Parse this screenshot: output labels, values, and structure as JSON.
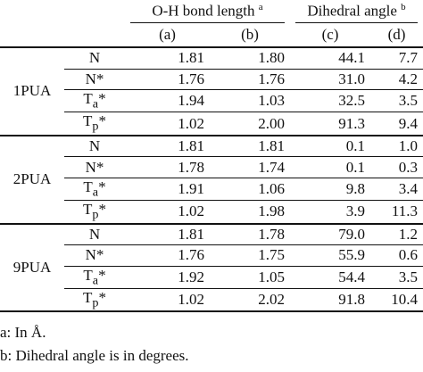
{
  "table": {
    "header": {
      "group1": {
        "text": "O-H bond length",
        "note": "a"
      },
      "group2": {
        "text": "Dihedral angle",
        "note": "b"
      },
      "columns": [
        "(a)",
        "(b)",
        "(c)",
        "(d)"
      ]
    },
    "groups": [
      {
        "name": "1PUA",
        "rows": [
          {
            "label": "N",
            "cells": [
              "1.81",
              "1.80",
              "44.1",
              "7.7"
            ]
          },
          {
            "label": "N*",
            "cells": [
              "1.76",
              "1.76",
              "31.0",
              "4.2"
            ]
          },
          {
            "label": {
              "text": "T",
              "sub": "a",
              "suffix": "*"
            },
            "cells": [
              "1.94",
              "1.03",
              "32.5",
              "3.5"
            ]
          },
          {
            "label": {
              "text": "T",
              "sub": "p",
              "suffix": "*"
            },
            "cells": [
              "1.02",
              "2.00",
              "91.3",
              "9.4"
            ]
          }
        ]
      },
      {
        "name": "2PUA",
        "rows": [
          {
            "label": "N",
            "cells": [
              "1.81",
              "1.81",
              "0.1",
              "1.0"
            ]
          },
          {
            "label": "N*",
            "cells": [
              "1.78",
              "1.74",
              "0.1",
              "0.3"
            ]
          },
          {
            "label": {
              "text": "T",
              "sub": "a",
              "suffix": "*"
            },
            "cells": [
              "1.91",
              "1.06",
              "9.8",
              "3.4"
            ]
          },
          {
            "label": {
              "text": "T",
              "sub": "p",
              "suffix": "*"
            },
            "cells": [
              "1.02",
              "1.98",
              "3.9",
              "11.3"
            ]
          }
        ]
      },
      {
        "name": "9PUA",
        "rows": [
          {
            "label": "N",
            "cells": [
              "1.81",
              "1.78",
              "79.0",
              "1.2"
            ]
          },
          {
            "label": "N*",
            "cells": [
              "1.76",
              "1.75",
              "55.9",
              "0.6"
            ]
          },
          {
            "label": {
              "text": "T",
              "sub": "a",
              "suffix": "*"
            },
            "cells": [
              "1.92",
              "1.05",
              "54.4",
              "3.5"
            ]
          },
          {
            "label": {
              "text": "T",
              "sub": "p",
              "suffix": "*"
            },
            "cells": [
              "1.02",
              "2.02",
              "91.8",
              "10.4"
            ]
          }
        ]
      }
    ],
    "footnotes": [
      "a: In Å.",
      "b: Dihedral angle is in degrees."
    ]
  }
}
